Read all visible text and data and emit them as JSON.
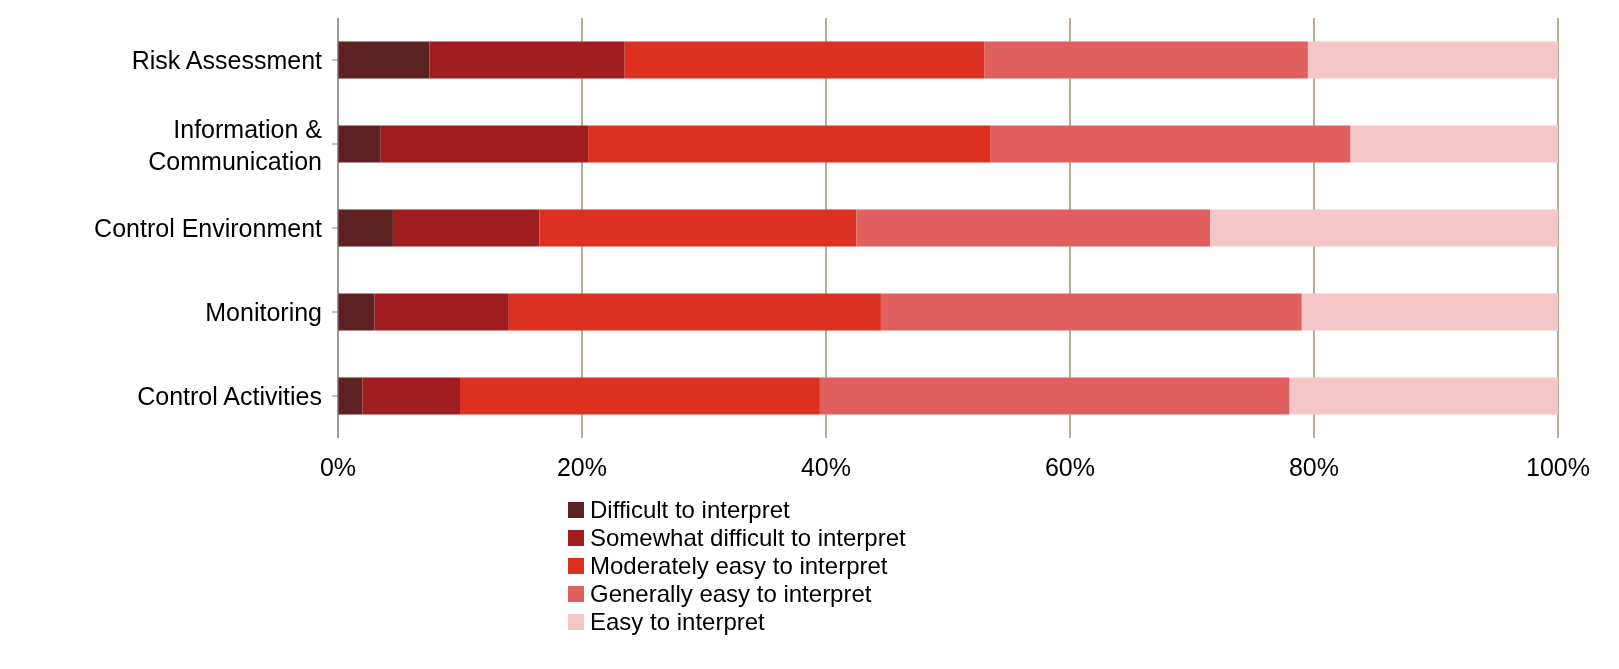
{
  "chart_data": {
    "type": "bar",
    "orientation": "horizontal",
    "stacked": true,
    "categories": [
      "Risk Assessment",
      "Information & Communication",
      "Control Environment",
      "Monitoring",
      "Control Activities"
    ],
    "series": [
      {
        "name": "Difficult to interpret",
        "color": "#5c2120",
        "values": [
          7.5,
          3.5,
          4.5,
          3,
          2
        ]
      },
      {
        "name": "Somewhat difficult to interpret",
        "color": "#a01e20",
        "values": [
          16,
          17,
          12,
          11,
          8
        ]
      },
      {
        "name": "Moderately easy to interpret",
        "color": "#dc3020",
        "values": [
          29.5,
          33,
          26,
          30.5,
          29.5
        ]
      },
      {
        "name": "Generally easy to interpret",
        "color": "#e06060",
        "values": [
          26.5,
          29.5,
          29,
          34.5,
          38.5
        ]
      },
      {
        "name": "Easy to interpret",
        "color": "#f4c6c6",
        "values": [
          20.5,
          17,
          28.5,
          21,
          22
        ]
      }
    ],
    "xlim": [
      0,
      100
    ],
    "xticks": [
      {
        "value": 0,
        "label": "0%"
      },
      {
        "value": 20,
        "label": "20%"
      },
      {
        "value": 40,
        "label": "40%"
      },
      {
        "value": 60,
        "label": "60%"
      },
      {
        "value": 80,
        "label": "80%"
      },
      {
        "value": 100,
        "label": "100%"
      }
    ],
    "grid": "x",
    "legend": "bottom"
  }
}
